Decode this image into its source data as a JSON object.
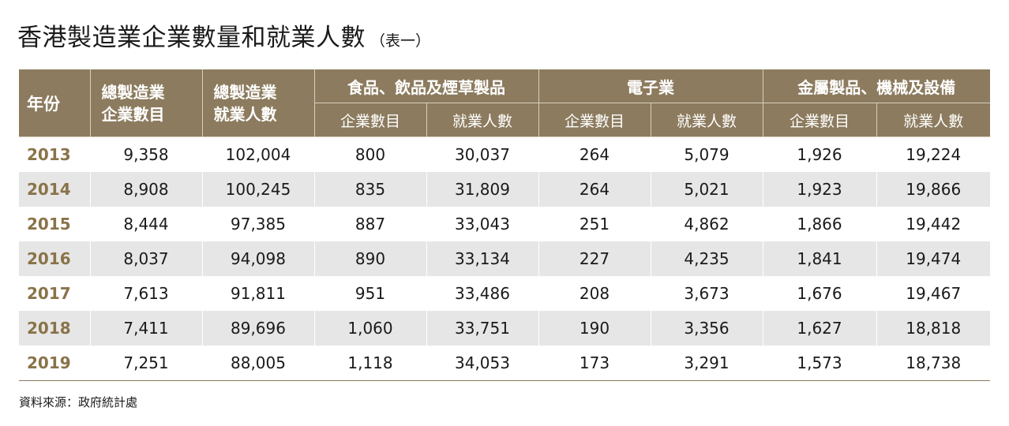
{
  "title": {
    "main": "香港製造業企業數量和就業人數",
    "sub": "（表一）"
  },
  "table": {
    "header_top": {
      "year": "年份",
      "total_enterprises": [
        "總製造業",
        "企業數目"
      ],
      "total_employment": [
        "總製造業",
        "就業人數"
      ],
      "group_food": "食品、飲品及煙草製品",
      "group_electronics": "電子業",
      "group_metal": "金屬製品、機械及設備"
    },
    "header_bottom": {
      "food_enterprises": "企業數目",
      "food_employment": "就業人數",
      "electronics_enterprises": "企業數目",
      "electronics_employment": "就業人數",
      "metal_enterprises": "企業數目",
      "metal_employment": "就業人數"
    },
    "rows": [
      [
        "2013",
        "9,358",
        "102,004",
        "800",
        "30,037",
        "264",
        "5,079",
        "1,926",
        "19,224"
      ],
      [
        "2014",
        "8,908",
        "100,245",
        "835",
        "31,809",
        "264",
        "5,021",
        "1,923",
        "19,866"
      ],
      [
        "2015",
        "8,444",
        "97,385",
        "887",
        "33,043",
        "251",
        "4,862",
        "1,866",
        "19,442"
      ],
      [
        "2016",
        "8,037",
        "94,098",
        "890",
        "33,134",
        "227",
        "4,235",
        "1,841",
        "19,474"
      ],
      [
        "2017",
        "7,613",
        "91,811",
        "951",
        "33,486",
        "208",
        "3,673",
        "1,676",
        "19,467"
      ],
      [
        "2018",
        "7,411",
        "89,696",
        "1,060",
        "33,751",
        "190",
        "3,356",
        "1,627",
        "18,818"
      ],
      [
        "2019",
        "7,251",
        "88,005",
        "1,118",
        "34,053",
        "173",
        "3,291",
        "1,573",
        "18,738"
      ]
    ]
  },
  "source": "資料來源：政府統計處",
  "colors": {
    "header_bg": "#8c7b5e",
    "year_text": "#8a7349",
    "stripe_bg": "#e6e6e6"
  }
}
